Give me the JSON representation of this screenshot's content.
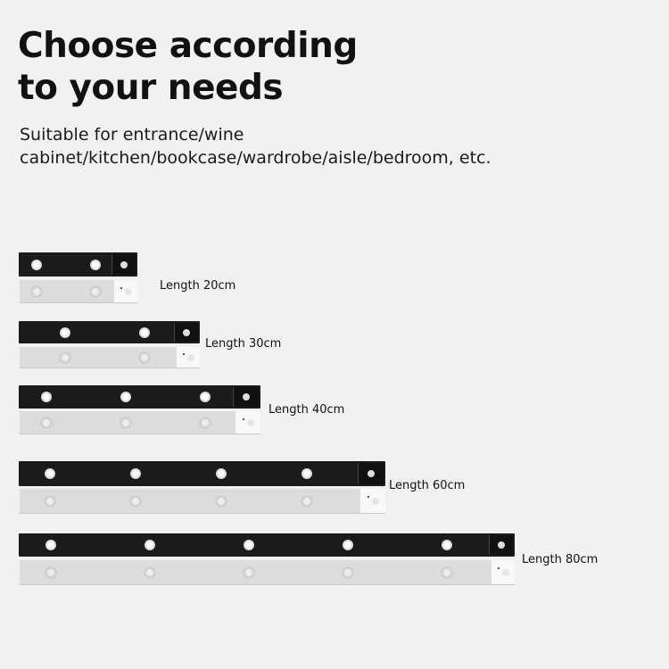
{
  "heading": {
    "title_line1": "Choose according",
    "title_line2": "to your needs",
    "subtitle_line1": "Suitable for entrance/wine",
    "subtitle_line2": "cabinet/kitchen/bookcase/wardrobe/aisle/bedroom, etc."
  },
  "products": [
    {
      "label": "Length 20cm",
      "led_count": 2
    },
    {
      "label": "Length 30cm",
      "led_count": 2
    },
    {
      "label": "Length 40cm",
      "led_count": 3
    },
    {
      "label": "Length 60cm",
      "led_count": 4
    },
    {
      "label": "Length 80cm",
      "led_count": 5
    }
  ],
  "colors": {
    "background": "#f1f1f1",
    "bar_black": "#1b1b1b",
    "bar_silver": "#dcdcdc"
  }
}
